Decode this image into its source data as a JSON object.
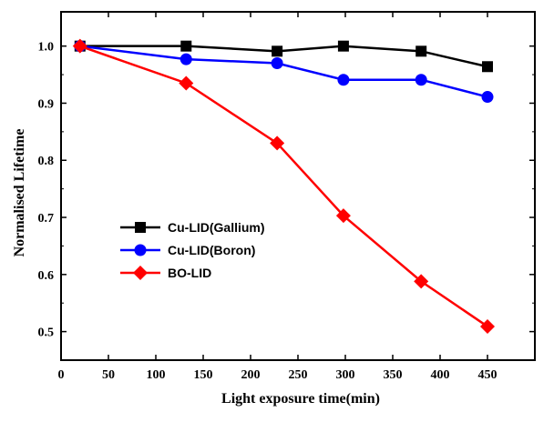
{
  "chart_data": {
    "type": "line",
    "title": "",
    "xlabel": "Light exposure time(min)",
    "ylabel": "Normalised Lifetime",
    "xlim": [
      0,
      500
    ],
    "ylim": [
      0.45,
      1.06
    ],
    "xticks": [
      0,
      50,
      100,
      150,
      200,
      250,
      300,
      350,
      400,
      450
    ],
    "yticks": [
      0.5,
      0.6,
      0.7,
      0.8,
      0.9,
      1.0
    ],
    "ytick_labels": [
      "0.5",
      "0.6",
      "0.7",
      "0.8",
      "0.9",
      "1.0"
    ],
    "grid": false,
    "legend_position": "center-left",
    "series": [
      {
        "name": "Cu-LID(Gallium)",
        "color": "#000000",
        "marker": "square",
        "x": [
          20,
          132,
          228,
          298,
          380,
          450
        ],
        "y": [
          1.0,
          1.0,
          0.991,
          1.0,
          0.991,
          0.964
        ]
      },
      {
        "name": "Cu-LID(Boron)",
        "color": "#0000ff",
        "marker": "circle",
        "x": [
          20,
          132,
          228,
          298,
          380,
          450
        ],
        "y": [
          1.0,
          0.977,
          0.97,
          0.941,
          0.941,
          0.911
        ]
      },
      {
        "name": "BO-LID",
        "color": "#ff0000",
        "marker": "diamond",
        "x": [
          20,
          132,
          228,
          298,
          380,
          450
        ],
        "y": [
          1.0,
          0.935,
          0.83,
          0.703,
          0.588,
          0.509
        ]
      }
    ]
  }
}
